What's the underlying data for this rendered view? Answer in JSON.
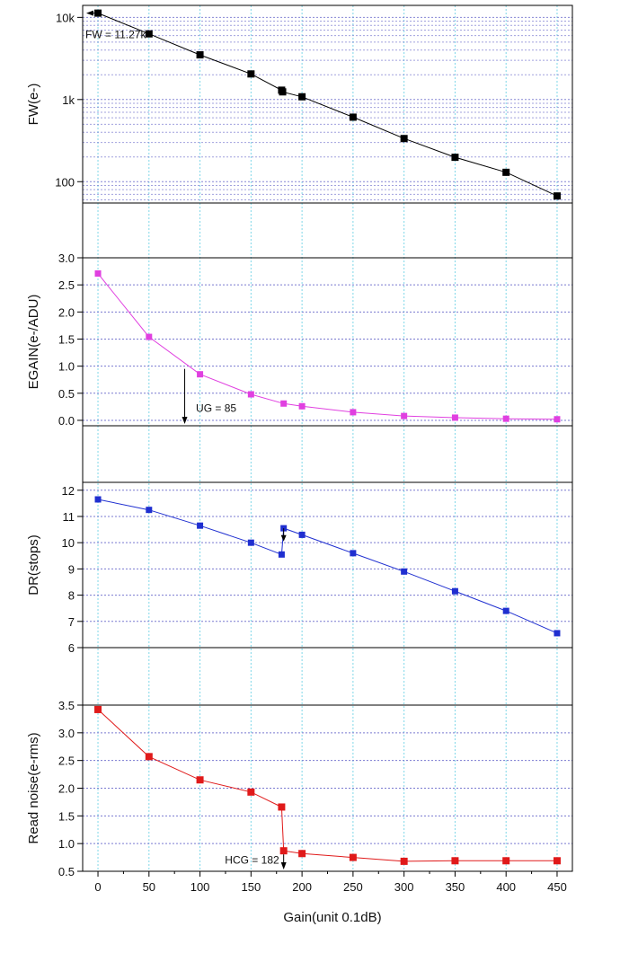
{
  "chart_data": {
    "type": "line",
    "xlabel": "Gain(unit 0.1dB)",
    "xlim": [
      -15,
      465
    ],
    "xticks": [
      0,
      50,
      100,
      150,
      200,
      250,
      300,
      350,
      400,
      450
    ],
    "xtick_labels": [
      "0",
      "50",
      "100",
      "150",
      "200",
      "250",
      "300",
      "350",
      "400",
      "450"
    ],
    "grid": true,
    "colors": {
      "fw": "#000000",
      "egain": "#e040e0",
      "dr": "#1f2fd0",
      "noise": "#e01a1a",
      "vgrid": "#7fd7e8",
      "hgrid": "#7a7ad0"
    },
    "panels": [
      {
        "id": "fw",
        "ylabel": "FW(e-)",
        "yscale": "log",
        "ylim": [
          55,
          14000
        ],
        "yticks": [
          100,
          1000,
          10000
        ],
        "ytick_labels": [
          "100",
          "1k",
          "10k"
        ],
        "x": [
          0,
          50,
          100,
          150,
          180,
          181,
          200,
          250,
          300,
          350,
          400,
          450
        ],
        "y": [
          11270,
          6300,
          3500,
          2050,
          1300,
          1240,
          1080,
          610,
          335,
          198,
          130,
          67
        ],
        "annotation": "FW = 11.27k"
      },
      {
        "id": "egain",
        "ylabel": "EGAIN(e-/ADU)",
        "yscale": "linear",
        "ylim": [
          -0.1,
          3.0
        ],
        "yticks": [
          0.0,
          0.5,
          1.0,
          1.5,
          2.0,
          2.5,
          3.0
        ],
        "ytick_labels": [
          "0.0",
          "0.5",
          "1.0",
          "1.5",
          "2.0",
          "2.5",
          "3.0"
        ],
        "x": [
          0,
          50,
          100,
          150,
          182,
          200,
          250,
          300,
          350,
          400,
          450
        ],
        "y": [
          2.71,
          1.54,
          0.85,
          0.48,
          0.31,
          0.26,
          0.15,
          0.08,
          0.05,
          0.03,
          0.02
        ],
        "annotation": "UG = 85"
      },
      {
        "id": "dr",
        "ylabel": "DR(stops)",
        "yscale": "linear",
        "ylim": [
          6,
          12.3
        ],
        "yticks": [
          6,
          7,
          8,
          9,
          10,
          11,
          12
        ],
        "ytick_labels": [
          "6",
          "7",
          "8",
          "9",
          "10",
          "11",
          "12"
        ],
        "x": [
          0,
          50,
          100,
          150,
          180,
          182,
          200,
          250,
          300,
          350,
          400,
          450
        ],
        "y": [
          11.65,
          11.25,
          10.65,
          10.0,
          9.55,
          10.55,
          10.3,
          9.6,
          8.9,
          8.15,
          7.4,
          6.55
        ]
      },
      {
        "id": "noise",
        "ylabel": "Read noise(e-rms)",
        "yscale": "linear",
        "ylim": [
          0.5,
          3.5
        ],
        "yticks": [
          0.5,
          1.0,
          1.5,
          2.0,
          2.5,
          3.0,
          3.5
        ],
        "ytick_labels": [
          "0.5",
          "1.0",
          "1.5",
          "2.0",
          "2.5",
          "3.0",
          "3.5"
        ],
        "x": [
          0,
          50,
          100,
          150,
          180,
          182,
          200,
          250,
          300,
          350,
          400,
          450
        ],
        "y": [
          3.42,
          2.57,
          2.15,
          1.93,
          1.66,
          0.87,
          0.82,
          0.75,
          0.68,
          0.69,
          0.69,
          0.69
        ],
        "annotation": "HCG = 182"
      }
    ]
  }
}
